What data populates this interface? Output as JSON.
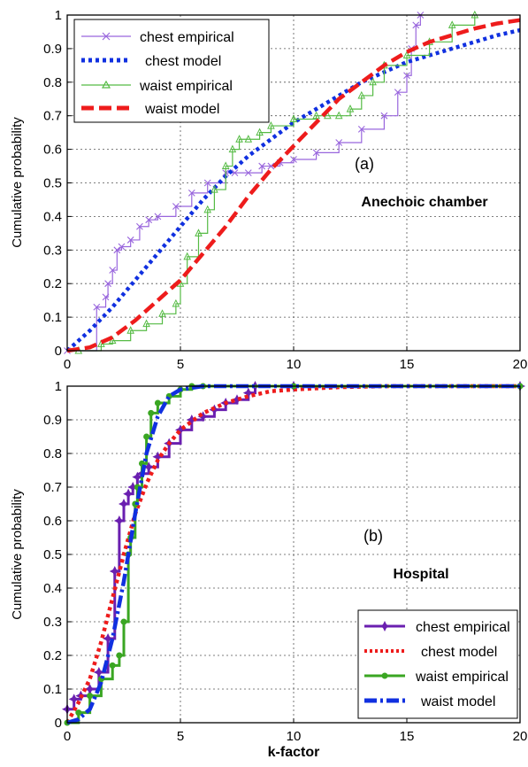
{
  "chart_data": [
    {
      "type": "line",
      "panel_label": "(a)",
      "annotation": "Anechoic chamber",
      "ylabel": "Cumulative probability",
      "xlabel": "",
      "xlim": [
        0,
        20
      ],
      "ylim": [
        0,
        1
      ],
      "xticks": [
        "0",
        "5",
        "10",
        "15",
        "20"
      ],
      "yticks": [
        "0",
        "0.1",
        "0.2",
        "0.3",
        "0.4",
        "0.5",
        "0.6",
        "0.7",
        "0.8",
        "0.9",
        "1"
      ],
      "grid": true,
      "legend_position": "top-left",
      "series": [
        {
          "name": "chest empirical",
          "color": "#9966dd",
          "style": "solid",
          "marker": "x",
          "x": [
            0.0,
            1.3,
            1.7,
            1.8,
            2.0,
            2.2,
            2.4,
            2.8,
            3.2,
            3.6,
            4.0,
            4.8,
            5.5,
            6.2,
            7.0,
            7.4,
            8.0,
            8.6,
            9.0,
            9.4,
            10.0,
            11.0,
            12.0,
            13.0,
            14.0,
            14.6,
            15.0,
            15.2,
            15.4,
            15.6
          ],
          "y": [
            0.0,
            0.13,
            0.16,
            0.2,
            0.24,
            0.3,
            0.31,
            0.33,
            0.37,
            0.39,
            0.4,
            0.43,
            0.47,
            0.5,
            0.53,
            0.53,
            0.53,
            0.55,
            0.55,
            0.56,
            0.57,
            0.59,
            0.62,
            0.66,
            0.7,
            0.77,
            0.82,
            0.9,
            0.97,
            1.0
          ]
        },
        {
          "name": "chest model",
          "color": "#1030e0",
          "style": "dotted",
          "marker": "",
          "x": [
            0,
            1,
            2,
            3,
            4,
            5,
            6,
            7,
            8,
            9,
            10,
            11,
            12,
            13,
            14,
            15,
            16,
            17,
            18,
            19,
            20
          ],
          "y": [
            0.0,
            0.06,
            0.13,
            0.21,
            0.29,
            0.37,
            0.45,
            0.52,
            0.58,
            0.63,
            0.68,
            0.72,
            0.76,
            0.8,
            0.83,
            0.86,
            0.88,
            0.9,
            0.92,
            0.94,
            0.955
          ]
        },
        {
          "name": "waist empirical",
          "color": "#55bb44",
          "style": "solid",
          "marker": "triangle",
          "x": [
            0.5,
            1.5,
            2.0,
            2.8,
            3.5,
            4.2,
            4.8,
            5.0,
            5.3,
            5.8,
            6.2,
            6.5,
            7.0,
            7.3,
            7.6,
            8.0,
            8.5,
            9.0,
            10.0,
            11.0,
            11.5,
            12.0,
            12.5,
            13.0,
            13.5,
            14.0,
            15.0,
            16.0,
            17.0,
            18.0
          ],
          "y": [
            0.0,
            0.02,
            0.03,
            0.06,
            0.08,
            0.11,
            0.14,
            0.2,
            0.28,
            0.35,
            0.42,
            0.48,
            0.55,
            0.6,
            0.63,
            0.63,
            0.65,
            0.67,
            0.69,
            0.7,
            0.7,
            0.7,
            0.72,
            0.76,
            0.8,
            0.85,
            0.88,
            0.92,
            0.97,
            1.0
          ]
        },
        {
          "name": "waist model",
          "color": "#ee1c1c",
          "style": "dashed",
          "marker": "",
          "x": [
            0,
            1,
            2,
            3,
            4,
            5,
            6,
            7,
            8,
            9,
            10,
            11,
            12,
            13,
            14,
            15,
            16,
            17,
            18,
            19,
            20
          ],
          "y": [
            0.0,
            0.01,
            0.04,
            0.09,
            0.15,
            0.21,
            0.29,
            0.37,
            0.46,
            0.54,
            0.61,
            0.68,
            0.75,
            0.8,
            0.85,
            0.89,
            0.92,
            0.94,
            0.96,
            0.975,
            0.985
          ]
        }
      ]
    },
    {
      "type": "line",
      "panel_label": "(b)",
      "annotation": "Hospital",
      "ylabel": "Cumulative probability",
      "xlabel": "k-factor",
      "xlim": [
        0,
        20
      ],
      "ylim": [
        0,
        1
      ],
      "xticks": [
        "0",
        "5",
        "10",
        "15",
        "20"
      ],
      "yticks": [
        "0",
        "0.1",
        "0.2",
        "0.3",
        "0.4",
        "0.5",
        "0.6",
        "0.7",
        "0.8",
        "0.9",
        "1"
      ],
      "grid": true,
      "legend_position": "bottom-right",
      "series": [
        {
          "name": "chest empirical",
          "color": "#6a1fb0",
          "style": "solid",
          "marker": "star",
          "x": [
            0.0,
            0.3,
            0.6,
            1.0,
            1.4,
            1.8,
            2.1,
            2.3,
            2.5,
            2.7,
            2.9,
            3.1,
            3.3,
            3.6,
            4.0,
            4.5,
            5.0,
            5.5,
            6.0,
            6.5,
            7.0,
            7.5,
            8.0,
            8.3,
            10.0,
            20.0
          ],
          "y": [
            0.04,
            0.07,
            0.08,
            0.1,
            0.15,
            0.25,
            0.45,
            0.6,
            0.65,
            0.68,
            0.7,
            0.73,
            0.74,
            0.76,
            0.79,
            0.83,
            0.87,
            0.9,
            0.91,
            0.93,
            0.95,
            0.96,
            0.98,
            1.0,
            1.0,
            1.0
          ]
        },
        {
          "name": "chest model",
          "color": "#ee1c1c",
          "style": "dotted",
          "marker": "",
          "x": [
            0,
            0.5,
            1,
            1.5,
            2,
            2.5,
            3,
            3.5,
            4,
            4.5,
            5,
            6,
            7,
            8,
            9,
            10,
            12,
            14,
            16,
            18,
            20
          ],
          "y": [
            0.0,
            0.06,
            0.13,
            0.24,
            0.37,
            0.5,
            0.62,
            0.71,
            0.78,
            0.83,
            0.87,
            0.92,
            0.95,
            0.97,
            0.985,
            0.99,
            0.997,
            1.0,
            1.0,
            1.0,
            1.0
          ]
        },
        {
          "name": "waist empirical",
          "color": "#3aa622",
          "style": "solid",
          "marker": "circle",
          "x": [
            0.0,
            0.5,
            1.0,
            1.5,
            2.0,
            2.3,
            2.5,
            2.7,
            2.8,
            3.0,
            3.1,
            3.3,
            3.5,
            3.7,
            4.0,
            4.5,
            5.0,
            5.5,
            6.0,
            10.0,
            20.0
          ],
          "y": [
            0.0,
            0.03,
            0.08,
            0.13,
            0.17,
            0.2,
            0.3,
            0.5,
            0.55,
            0.65,
            0.7,
            0.77,
            0.85,
            0.92,
            0.95,
            0.97,
            0.99,
            1.0,
            1.0,
            1.0,
            1.0
          ]
        },
        {
          "name": "waist model",
          "color": "#1030e0",
          "style": "dashdot",
          "marker": "",
          "x": [
            0,
            0.5,
            1,
            1.5,
            2,
            2.5,
            3,
            3.5,
            4,
            4.5,
            5,
            6,
            8,
            10,
            15,
            20
          ],
          "y": [
            0.0,
            0.01,
            0.04,
            0.12,
            0.25,
            0.42,
            0.62,
            0.8,
            0.91,
            0.97,
            0.99,
            1.0,
            1.0,
            1.0,
            1.0,
            1.0
          ]
        }
      ]
    }
  ]
}
